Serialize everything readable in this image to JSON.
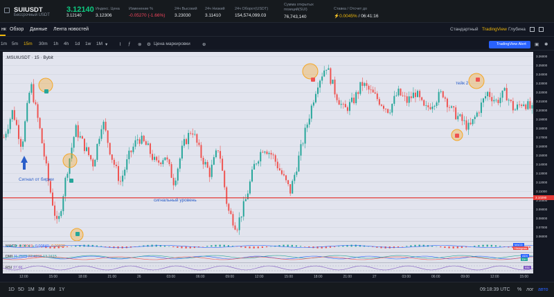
{
  "header": {
    "symbol": "SUIUSDT",
    "symbol_sub": "Бессрочный USDT",
    "price": "3.12140",
    "price_sub": "3.12140",
    "stats": [
      {
        "label": "Индекс. Цена",
        "value": "3.12306"
      },
      {
        "label": "Изменение %",
        "value": "-0.05270 (-1.66%)"
      },
      {
        "label": "24ч Высокий",
        "value": "3.23030"
      },
      {
        "label": "24ч Низкий",
        "value": "3.11410"
      },
      {
        "label": "24ч Оборот(USDT)",
        "value": "154,574,099.03"
      },
      {
        "label": "Сумма открытых позиций(SUI)",
        "value": "76,743,140"
      },
      {
        "label": "Ставка / Отсчет до",
        "value": "0.0045%",
        "value2": "/ 06:41:16"
      }
    ]
  },
  "tabs": {
    "items": [
      "нк",
      "Обзор",
      "Данные",
      "Лента новостей"
    ],
    "right": [
      "Стандартный",
      "TradingView",
      "Глубина"
    ]
  },
  "toolbar": {
    "timeframes": [
      "1m",
      "5m",
      "15m",
      "30m",
      "1h",
      "4h",
      "1d",
      "1w",
      "1M"
    ],
    "active": "15m",
    "price_type": "Цена маркировки",
    "alert": "TradingView Alert"
  },
  "chart": {
    "title": ".MSUIUSDT · 15 · Bybit",
    "annotations": {
      "signal": "Сигнал от биржи",
      "level": "сигнальный уровень",
      "take": "тейк 2"
    },
    "level_price": 3.1029,
    "level_label": "3.10290",
    "price_ticks": [
      "3.26000",
      "3.25000",
      "3.24000",
      "3.23000",
      "3.22000",
      "3.21000",
      "3.20000",
      "3.19000",
      "3.18000",
      "3.17000",
      "3.16000",
      "3.15000",
      "3.14000",
      "3.13000",
      "3.12000",
      "3.11000",
      "3.10000",
      "3.09000",
      "3.08000",
      "3.07000",
      "3.06000"
    ],
    "time_ticks": [
      "12:00",
      "15:00",
      "18:00",
      "21:00",
      "26",
      "03:00",
      "06:00",
      "09:00",
      "12:00",
      "15:00",
      "18:00",
      "21:00",
      "27",
      "03:00",
      "06:00",
      "09:00",
      "12:00",
      "15:00"
    ],
    "trend": [
      3.17,
      3.2,
      3.16,
      3.23,
      3.18,
      3.12,
      3.07,
      3.13,
      3.18,
      3.16,
      3.14,
      3.19,
      3.15,
      3.12,
      3.15,
      3.17,
      3.16,
      3.14,
      3.15,
      3.12,
      3.16,
      3.18,
      3.15,
      3.13,
      3.16,
      3.09,
      3.07,
      3.1,
      3.14,
      3.16,
      3.15,
      3.13,
      3.11,
      3.15,
      3.19,
      3.23,
      3.25,
      3.22,
      3.2,
      3.21,
      3.23,
      3.22,
      3.21,
      3.2,
      3.22,
      3.21,
      3.22,
      3.2,
      3.21,
      3.22,
      3.2,
      3.19,
      3.18,
      3.2,
      3.22,
      3.21,
      3.22,
      3.2,
      3.21,
      3.2
    ]
  },
  "indicators": {
    "macd": {
      "label": "MACD",
      "v1": "-0.00019",
      "v2": "-0.00840",
      "v3": "-0.00820",
      "r1": "MACD",
      "r2": "Histogram"
    },
    "dmi": {
      "label": "DMI",
      "v1": "11.7623",
      "v2": "22.4238",
      "v3": "13.2415",
      "r1": "ADX",
      "r2": "DI+"
    },
    "rsi": {
      "label": "RSI",
      "v1": "37.66",
      "r1": "RSI"
    }
  },
  "bottom": {
    "ranges": [
      "1D",
      "5D",
      "1M",
      "3M",
      "6M",
      "1Y"
    ],
    "time": "09:18:39 UTC",
    "pct": "%",
    "log": "лог",
    "auto": "авто"
  },
  "colors": {
    "up": "#26a69a",
    "down": "#ef5350",
    "level": "#e53935",
    "circle": "#f5a623"
  }
}
